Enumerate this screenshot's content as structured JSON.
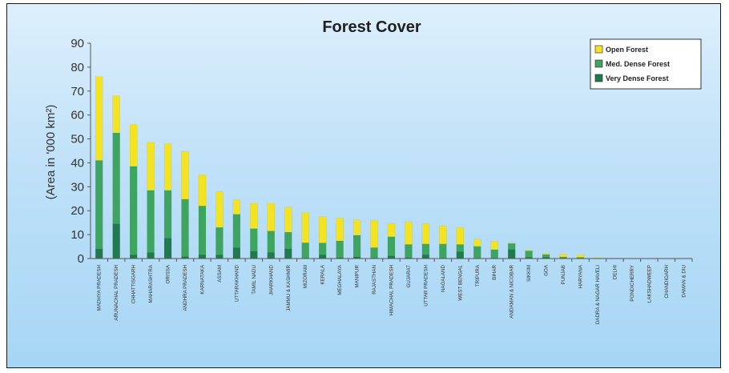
{
  "chart_data": {
    "type": "bar",
    "stacked": true,
    "title": "Forest Cover",
    "ylabel": "(Area in '000  km²)",
    "xlabel": "",
    "ylim": [
      0,
      90
    ],
    "yticks": [
      0,
      10,
      20,
      30,
      40,
      50,
      60,
      70,
      80,
      90
    ],
    "grid": false,
    "legend_position": "top-right",
    "categories": [
      "MADHYA PRADESH",
      "ARUNACHAL PRADESH",
      "CHHATTISGARH",
      "MAHARASHTRA",
      "ORISSA",
      "ANDHRA PRADESH",
      "KARNATAKA",
      "ASSAM",
      "UTTARAKHAND",
      "TAMIL NADU",
      "JHARKHAND",
      "JAMMU & KASHMIR",
      "MIZORAM",
      "KERALA",
      "MEGHALAYA",
      "MANIPUR",
      "RAJASTHAN",
      "HIMACHAL PRADESH",
      "GUJARAT",
      "UTTAR PRADESH",
      "NAGALAND",
      "WEST BENGAL",
      "TRIPURA",
      "BIHAR",
      "ANDAMAN & NICOBAR",
      "SIKKIM",
      "GOA",
      "PUNJAB",
      "HARYANA",
      "DADRA & NAGAR HAVELI",
      "DELHI",
      "PONDICHERRY",
      "LAKSHADWEEP",
      "CHANDIGARH",
      "DAMAN & DIU"
    ],
    "series": [
      {
        "name": "Very Dense Forest",
        "color": "#1f7a4d",
        "values": [
          4.0,
          14.5,
          1.5,
          2.5,
          8.5,
          0.8,
          1.5,
          1.5,
          4.5,
          3.0,
          2.5,
          4.0,
          0.1,
          1.5,
          0.4,
          0.7,
          0.07,
          1.1,
          0.4,
          1.6,
          0.1,
          2.9,
          0.1,
          0.2,
          3.8,
          0.5,
          0.5,
          0.0,
          0.0,
          0.0,
          0.0,
          0.0,
          0.0,
          0.0,
          0.0
        ]
      },
      {
        "name": "Med. Dense Forest",
        "color": "#3da55f",
        "values": [
          37.0,
          38.0,
          37.0,
          26.0,
          20.0,
          24.0,
          20.5,
          11.5,
          14.0,
          9.5,
          9.0,
          7.0,
          6.5,
          5.0,
          7.0,
          9.0,
          4.5,
          8.0,
          5.5,
          4.5,
          6.0,
          3.0,
          5.0,
          3.5,
          2.5,
          2.7,
          1.2,
          0.7,
          0.5,
          0.1,
          0.05,
          0.0,
          0.0,
          0.0,
          0.0
        ]
      },
      {
        "name": "Open Forest",
        "color": "#f3e320",
        "values": [
          35.0,
          15.5,
          17.5,
          20.0,
          19.5,
          20.0,
          13.0,
          15.0,
          6.0,
          10.5,
          11.5,
          10.5,
          12.5,
          11.0,
          9.5,
          6.5,
          11.5,
          5.5,
          9.5,
          8.5,
          7.5,
          7.0,
          3.0,
          3.5,
          0.4,
          0.3,
          0.5,
          1.1,
          1.0,
          0.2,
          0.1,
          0.05,
          0.03,
          0.02,
          0.01
        ]
      }
    ]
  }
}
